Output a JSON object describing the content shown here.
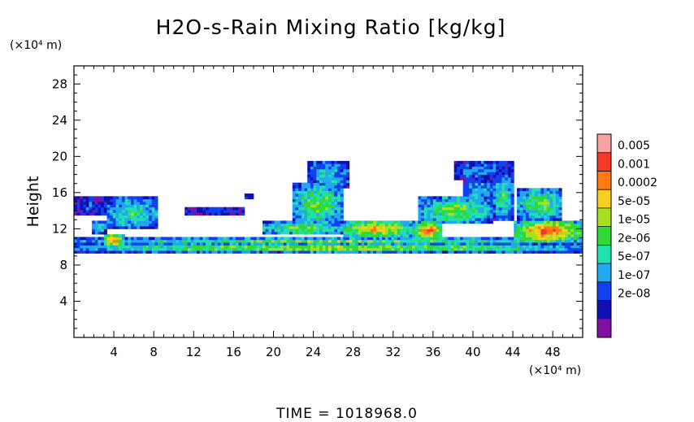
{
  "chart_data": {
    "type": "heatmap",
    "title": "H2O-s-Rain Mixing Ratio [kg/kg]",
    "ylabel": "Height",
    "y_unit_label": "(×10⁴ m)",
    "x_unit_label": "(×10⁴ m)",
    "footer": "TIME = 1018968.0",
    "xlim": [
      0,
      51
    ],
    "ylim": [
      0,
      30
    ],
    "x_ticks": [
      4,
      8,
      12,
      16,
      20,
      24,
      28,
      32,
      36,
      40,
      44,
      48
    ],
    "y_ticks": [
      4,
      8,
      12,
      16,
      20,
      24,
      28
    ],
    "x_tick_labels": [
      "4",
      "8",
      "12",
      "16",
      "20",
      "24",
      "28",
      "32",
      "36",
      "40",
      "44",
      "48"
    ],
    "y_tick_labels": [
      "4",
      "8",
      "12",
      "16",
      "20",
      "24",
      "28"
    ],
    "colorbar": {
      "labels": [
        "0.005",
        "0.001",
        "0.0002",
        "5e-05",
        "1e-05",
        "2e-06",
        "5e-07",
        "1e-07",
        "2e-08"
      ],
      "colors": [
        "#f7a3a3",
        "#f33a2a",
        "#ff7a10",
        "#f8d020",
        "#a8e020",
        "#30d838",
        "#20e0b0",
        "#20a8f0",
        "#1040f0",
        "#1010b0",
        "#8010a0"
      ]
    },
    "level_colors": [
      "#8010a0",
      "#1010b0",
      "#1040f0",
      "#20a8f0",
      "#20e0b0",
      "#30d838",
      "#a8e020",
      "#f8d020",
      "#ff7a10",
      "#f33a2a",
      "#f7a3a3"
    ],
    "regions": [
      {
        "x": [
          0,
          51
        ],
        "y": [
          9.5,
          10.3
        ],
        "peak": 7
      },
      {
        "x": [
          0,
          51
        ],
        "y": [
          10.3,
          11.0
        ],
        "peak": 6
      },
      {
        "x": [
          0,
          51
        ],
        "y": [
          9.2,
          9.5
        ],
        "peak": 4
      },
      {
        "x": [
          3,
          5
        ],
        "y": [
          10.0,
          11.5
        ],
        "peak": 9
      },
      {
        "x": [
          3.2,
          8.5
        ],
        "y": [
          12.0,
          15.5
        ],
        "peak": 5
      },
      {
        "x": [
          0,
          3.5
        ],
        "y": [
          13.5,
          15.5
        ],
        "peak": 2
      },
      {
        "x": [
          1.8,
          3.2
        ],
        "y": [
          11.5,
          13.0
        ],
        "peak": 5
      },
      {
        "x": [
          11,
          17
        ],
        "y": [
          13.5,
          14.5
        ],
        "peak": 2
      },
      {
        "x": [
          17,
          18
        ],
        "y": [
          15.3,
          15.8
        ],
        "peak": 2
      },
      {
        "x": [
          19,
          27
        ],
        "y": [
          11.3,
          12.8
        ],
        "peak": 6
      },
      {
        "x": [
          22,
          27
        ],
        "y": [
          12.5,
          17.0
        ],
        "peak": 6
      },
      {
        "x": [
          23.5,
          27.5
        ],
        "y": [
          16.5,
          19.5
        ],
        "peak": 4
      },
      {
        "x": [
          27,
          34
        ],
        "y": [
          11.0,
          13.0
        ],
        "peak": 8
      },
      {
        "x": [
          34,
          37
        ],
        "y": [
          10.8,
          12.8
        ],
        "peak": 9
      },
      {
        "x": [
          34.5,
          42
        ],
        "y": [
          12.5,
          15.5
        ],
        "peak": 6
      },
      {
        "x": [
          38,
          44
        ],
        "y": [
          17.5,
          19.5
        ],
        "peak": 3
      },
      {
        "x": [
          39,
          42
        ],
        "y": [
          15.0,
          17.5
        ],
        "peak": 4
      },
      {
        "x": [
          42,
          44
        ],
        "y": [
          13.0,
          18.0
        ],
        "peak": 5
      },
      {
        "x": [
          44,
          51
        ],
        "y": [
          10.5,
          13.0
        ],
        "peak": 9
      },
      {
        "x": [
          44.5,
          49
        ],
        "y": [
          13.0,
          16.5
        ],
        "peak": 6
      }
    ]
  }
}
